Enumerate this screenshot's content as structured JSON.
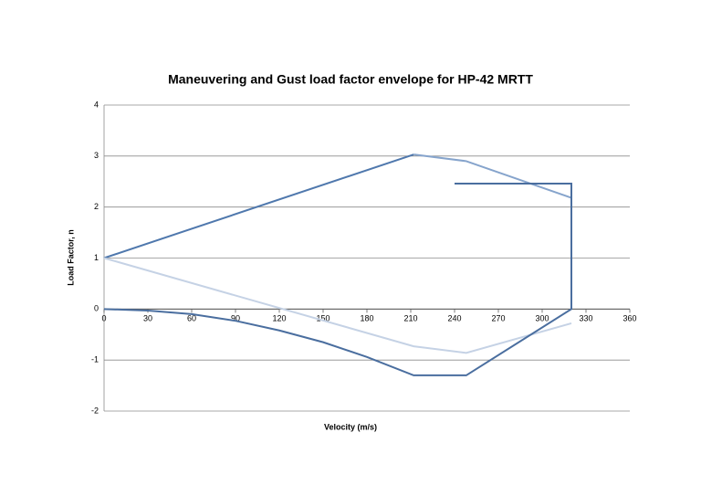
{
  "chart_data": {
    "type": "line",
    "title": "Maneuvering and Gust load factor envelope for HP-42 MRTT",
    "x_label": "Velocity (m/s)",
    "y_label": "Load Factor, n",
    "xlim": [
      0,
      360
    ],
    "xticks": [
      0,
      30,
      60,
      90,
      120,
      150,
      180,
      210,
      240,
      270,
      300,
      330,
      360
    ],
    "ylim": [
      -2,
      4
    ],
    "yticks": [
      -2,
      -1,
      0,
      1,
      2,
      3,
      4
    ],
    "grid": true,
    "series": [
      {
        "color": "#4f78ad",
        "x": [
          0,
          212
        ],
        "values": [
          1,
          3.03
        ]
      },
      {
        "color": "#86a4cc",
        "x": [
          212,
          248,
          320
        ],
        "values": [
          3.03,
          2.9,
          2.18
        ]
      },
      {
        "color": "#c5d2e5",
        "x": [
          0,
          212,
          248,
          320
        ],
        "values": [
          1,
          -0.73,
          -0.86,
          -0.28
        ]
      },
      {
        "color": "#4a6e9f",
        "x": [
          0,
          30,
          60,
          90,
          120,
          150,
          180,
          212,
          248,
          320,
          320,
          240
        ],
        "values": [
          0,
          -0.03,
          -0.1,
          -0.23,
          -0.42,
          -0.65,
          -0.94,
          -1.3,
          -1.3,
          0,
          2.46,
          2.46
        ]
      }
    ]
  }
}
